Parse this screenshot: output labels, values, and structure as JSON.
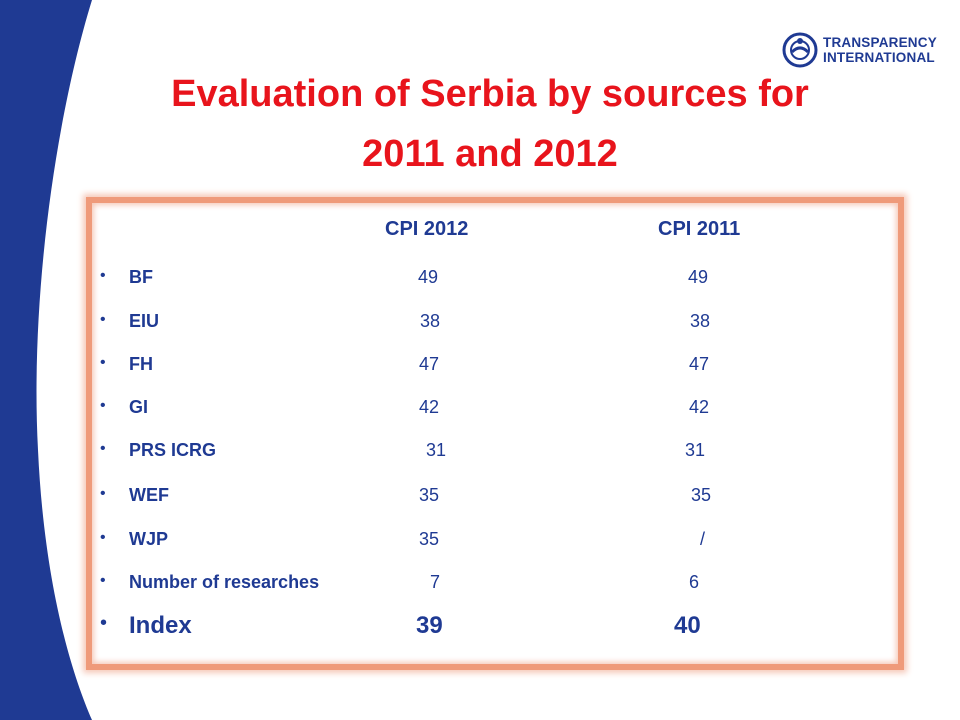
{
  "title_lines": [
    "Evaluation of Serbia by sources for",
    "2011 and 2012"
  ],
  "logo": {
    "line1": "TRANSPARENCY",
    "line2": "INTERNATIONAL"
  },
  "columns": [
    "CPI 2012",
    "CPI 2011"
  ],
  "bullet": "•",
  "rows": [
    {
      "label": "BF",
      "v2012": "49",
      "v2011": "49"
    },
    {
      "label": "EIU",
      "v2012": "38",
      "v2011": "38"
    },
    {
      "label": "FH",
      "v2012": "47",
      "v2011": "47"
    },
    {
      "label": "GI",
      "v2012": "42",
      "v2011": "42"
    },
    {
      "label": "PRS ICRG",
      "v2012": "31",
      "v2011": "31"
    },
    {
      "label": "WEF",
      "v2012": "35",
      "v2011": "35"
    },
    {
      "label": "WJP",
      "v2012": "35",
      "v2011": "/"
    },
    {
      "label": "Number of researches",
      "v2012": "7",
      "v2011": "6"
    },
    {
      "label": "Index",
      "v2012": "39",
      "v2011": "40"
    }
  ],
  "colors": {
    "title": "#e8141c",
    "text": "#1f3a93",
    "frame": "#ef9a7a",
    "swoosh": "#1f3a93"
  }
}
